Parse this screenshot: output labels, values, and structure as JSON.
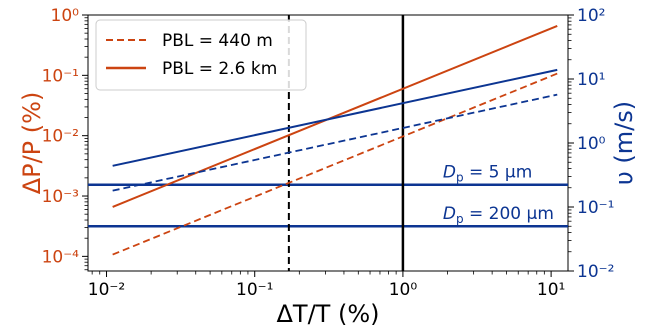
{
  "chart_data": {
    "type": "line",
    "xlabel": "ΔT/T (%)",
    "ylabel_left": "ΔP/P (%)",
    "ylabel_right": "υ (m/s)",
    "x_scale": "log",
    "y_left_scale": "log",
    "y_right_scale": "log",
    "xlim": [
      0.0075,
      13
    ],
    "ylim_left": [
      5.72e-05,
      1.0
    ],
    "ylim_right": [
      0.01,
      100
    ],
    "x_ticks": [
      0.01,
      0.1,
      1,
      10
    ],
    "x_tick_labels": [
      "10⁻²",
      "10⁻¹",
      "10⁰",
      "10¹"
    ],
    "y_left_ticks": [
      0.0001,
      0.001,
      0.01,
      0.1,
      1
    ],
    "y_left_tick_labels": [
      "10⁻⁴",
      "10⁻³",
      "10⁻²",
      "10⁻¹",
      "10⁰"
    ],
    "y_right_ticks": [
      0.01,
      0.1,
      1,
      10,
      100
    ],
    "y_right_tick_labels": [
      "10⁻²",
      "10⁻¹",
      "10⁰",
      "10¹",
      "10²"
    ],
    "grid": false,
    "legend_position": "top-left",
    "colors": {
      "left": "#cc4411",
      "right": "#0c3592",
      "frame": "#000000"
    },
    "series": [
      {
        "name": "PBL = 440 m",
        "axis": "left",
        "style": "dashed",
        "color": "#cc4411",
        "x": [
          0.011,
          11
        ],
        "y": [
          0.000107,
          0.107
        ]
      },
      {
        "name": "PBL = 2.6 km",
        "axis": "left",
        "style": "solid",
        "color": "#cc4411",
        "x": [
          0.011,
          11
        ],
        "y": [
          0.00066,
          0.66
        ]
      },
      {
        "axis": "right",
        "style": "dashed",
        "color": "#0c3592",
        "x": [
          0.011,
          11
        ],
        "y": [
          0.18,
          5.7
        ]
      },
      {
        "axis": "right",
        "style": "solid",
        "color": "#0c3592",
        "x": [
          0.011,
          11
        ],
        "y": [
          0.44,
          13.9
        ]
      }
    ],
    "horizontal_lines": [
      {
        "axis": "right",
        "y": 0.223,
        "color": "#0c3592",
        "label": "D_p = 5 μm",
        "label_x": 1.0,
        "label_y": 0.29
      },
      {
        "axis": "right",
        "y": 0.05,
        "color": "#0c3592",
        "label": "D_p = 200 μm",
        "label_x": 1.0,
        "label_y": 0.065
      }
    ],
    "vertical_lines": [
      {
        "x": 0.17,
        "style": "dashed",
        "color": "#000000"
      },
      {
        "x": 1.0,
        "style": "solid",
        "color": "#000000"
      }
    ],
    "annotations": [
      {
        "text_main": "D",
        "text_sub": "p",
        "text_rest": " = 5 μm"
      },
      {
        "text_main": "D",
        "text_sub": "p",
        "text_rest": " = 200 μm"
      }
    ]
  }
}
